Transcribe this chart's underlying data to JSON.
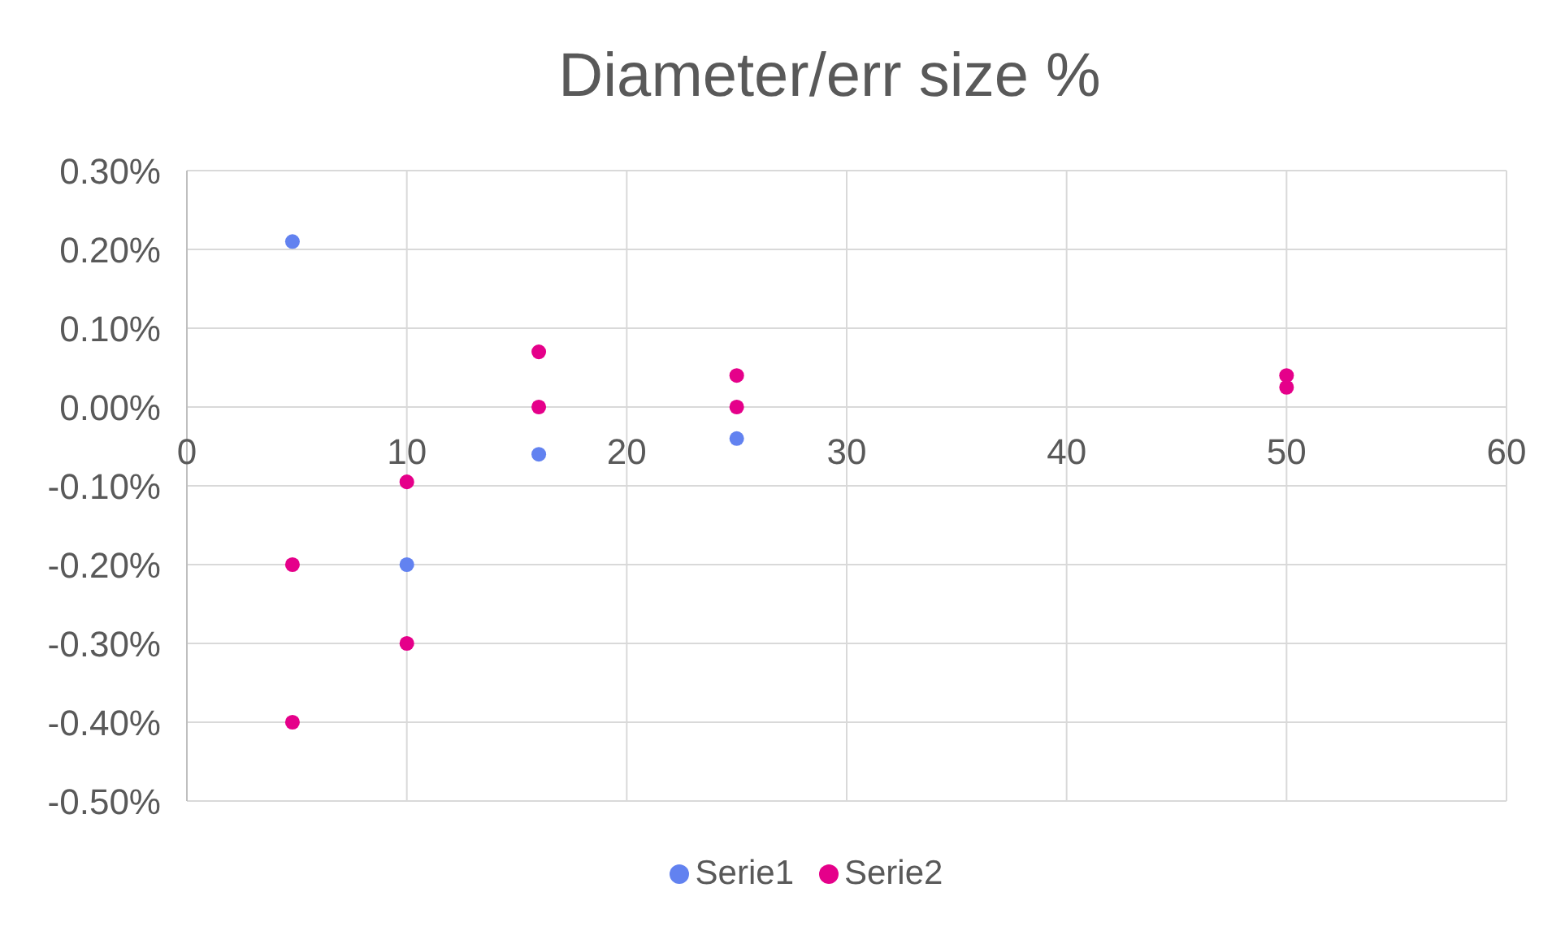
{
  "chart_data": {
    "type": "scatter",
    "title": "Diameter/err size %",
    "series": [
      {
        "name": "Serie1",
        "color": "#6282f0",
        "x": [
          4.8,
          10,
          16,
          25
        ],
        "values": [
          0.21,
          -0.2,
          -0.06,
          -0.04
        ]
      },
      {
        "name": "Serie2",
        "color": "#e5008a",
        "x": [
          4.8,
          4.8,
          10,
          10,
          16,
          16,
          25,
          25,
          50,
          50
        ],
        "values": [
          -0.2,
          -0.4,
          -0.095,
          -0.3,
          0.07,
          0.0,
          0.04,
          0.0,
          0.04,
          0.025
        ]
      }
    ],
    "xlim": [
      0,
      60
    ],
    "xticks": [
      0,
      10,
      20,
      30,
      40,
      50,
      60
    ],
    "ylim": [
      -0.5,
      0.3
    ],
    "yticks": [
      {
        "value": 0.3,
        "label": "0.30%"
      },
      {
        "value": 0.2,
        "label": "0.20%"
      },
      {
        "value": 0.1,
        "label": "0.10%"
      },
      {
        "value": 0,
        "label": "0.00%"
      },
      {
        "value": -0.1,
        "label": "-0.10%"
      },
      {
        "value": -0.2,
        "label": "-0.20%"
      },
      {
        "value": -0.3,
        "label": "-0.30%"
      },
      {
        "value": -0.4,
        "label": "-0.40%"
      },
      {
        "value": -0.5,
        "label": "-0.50%"
      }
    ],
    "grid": true,
    "legend": "bottom",
    "marker": "circle"
  }
}
